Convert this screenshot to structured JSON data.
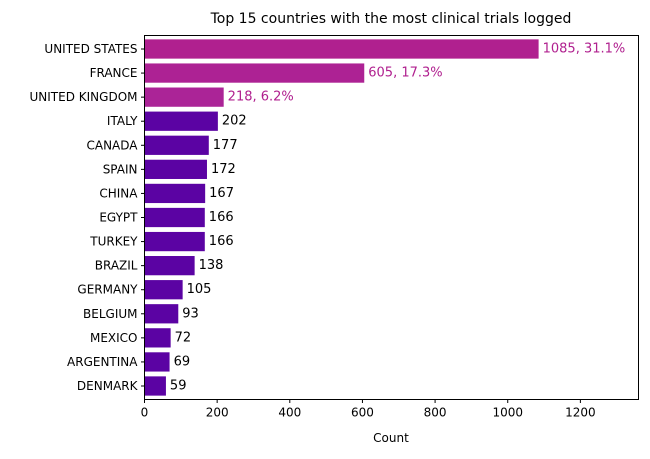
{
  "chart_data": {
    "type": "bar",
    "orientation": "horizontal",
    "title": "Top 15 countries with the most clinical trials logged",
    "xlabel": "Count",
    "ylabel": "",
    "xlim": [
      0,
      1360
    ],
    "xticks": [
      0,
      200,
      400,
      600,
      800,
      1000,
      1200
    ],
    "grid": false,
    "categories": [
      "UNITED STATES",
      "FRANCE",
      "UNITED KINGDOM",
      "ITALY",
      "CANADA",
      "SPAIN",
      "CHINA",
      "EGYPT",
      "TURKEY",
      "BRAZIL",
      "GERMANY",
      "BELGIUM",
      "MEXICO",
      "ARGENTINA",
      "DENMARK"
    ],
    "values": [
      1085,
      605,
      218,
      202,
      177,
      172,
      167,
      166,
      166,
      138,
      105,
      93,
      72,
      69,
      59
    ],
    "data_labels": [
      "1085, 31.1%",
      "605, 17.3%",
      "218, 6.2%",
      "202",
      "177",
      "172",
      "167",
      "166",
      "166",
      "138",
      "105",
      "93",
      "72",
      "69",
      "59"
    ],
    "colors": {
      "highlight_bars": [
        "#b0208f",
        "#ad2294",
        "#ab2497"
      ],
      "highlight_label": "#b0208f",
      "bar": "#5b03a3",
      "label": "#000000"
    }
  }
}
